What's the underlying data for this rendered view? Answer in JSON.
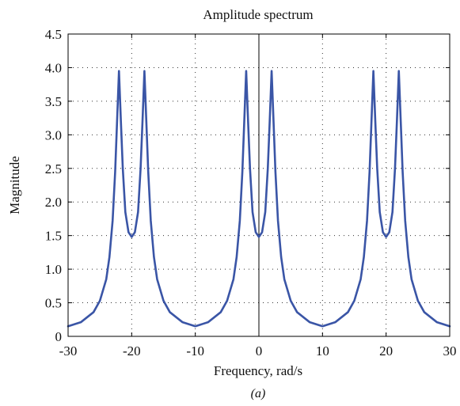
{
  "chart_data": {
    "type": "line",
    "title": "Amplitude spectrum",
    "xlabel": "Frequency, rad/s",
    "ylabel": "Magnitude",
    "caption": "(a)",
    "xlim": [
      -30,
      30
    ],
    "ylim": [
      0,
      4.5
    ],
    "xticks": [
      -30,
      -20,
      -10,
      0,
      10,
      20,
      30
    ],
    "xtick_labels": [
      "-30",
      "-20",
      "-10",
      "0",
      "10",
      "20",
      "30"
    ],
    "yticks": [
      0,
      0.5,
      1.0,
      1.5,
      2.0,
      2.5,
      3.0,
      3.5,
      4.0,
      4.5
    ],
    "ytick_labels": [
      "0",
      "0.5",
      "1.0",
      "1.5",
      "2.0",
      "2.5",
      "3.0",
      "3.5",
      "4.0",
      "4.5"
    ],
    "grid": true,
    "grid_style": "dotted",
    "zero_line": true,
    "series": [
      {
        "color": "#3a55a6",
        "x": [
          -30,
          -28,
          -26,
          -25,
          -24,
          -23.5,
          -23,
          -22.6,
          -22.3,
          -22,
          -21.7,
          -21.4,
          -21,
          -20.5,
          -20,
          -19.5,
          -19,
          -18.6,
          -18.3,
          -18,
          -17.7,
          -17.4,
          -17,
          -16.5,
          -16,
          -15,
          -14,
          -12,
          -10,
          -8,
          -6,
          -5,
          -4,
          -3.5,
          -3,
          -2.6,
          -2.3,
          -2,
          -1.7,
          -1.4,
          -1,
          -0.5,
          0,
          0.5,
          1,
          1.4,
          1.7,
          2,
          2.3,
          2.6,
          3,
          3.5,
          4,
          5,
          6,
          8,
          10,
          12,
          14,
          15,
          16,
          16.5,
          17,
          17.4,
          17.7,
          18,
          18.3,
          18.6,
          19,
          19.5,
          20,
          20.5,
          21,
          21.4,
          21.7,
          22,
          22.3,
          22.6,
          23,
          23.5,
          24,
          25,
          26,
          28,
          30
        ],
        "y": [
          0.15,
          0.21,
          0.36,
          0.53,
          0.85,
          1.18,
          1.72,
          2.45,
          3.2,
          3.95,
          3.2,
          2.5,
          1.85,
          1.55,
          1.48,
          1.55,
          1.85,
          2.5,
          3.2,
          3.95,
          3.2,
          2.45,
          1.72,
          1.18,
          0.85,
          0.53,
          0.36,
          0.21,
          0.15,
          0.21,
          0.36,
          0.53,
          0.85,
          1.18,
          1.72,
          2.45,
          3.2,
          3.95,
          3.2,
          2.5,
          1.85,
          1.55,
          1.48,
          1.55,
          1.85,
          2.5,
          3.2,
          3.95,
          3.2,
          2.45,
          1.72,
          1.18,
          0.85,
          0.53,
          0.36,
          0.21,
          0.15,
          0.21,
          0.36,
          0.53,
          0.85,
          1.18,
          1.72,
          2.45,
          3.2,
          3.95,
          3.2,
          2.5,
          1.85,
          1.55,
          1.48,
          1.55,
          1.85,
          2.5,
          3.2,
          3.95,
          3.2,
          2.45,
          1.72,
          1.18,
          0.85,
          0.53,
          0.36,
          0.21,
          0.15
        ]
      }
    ]
  }
}
